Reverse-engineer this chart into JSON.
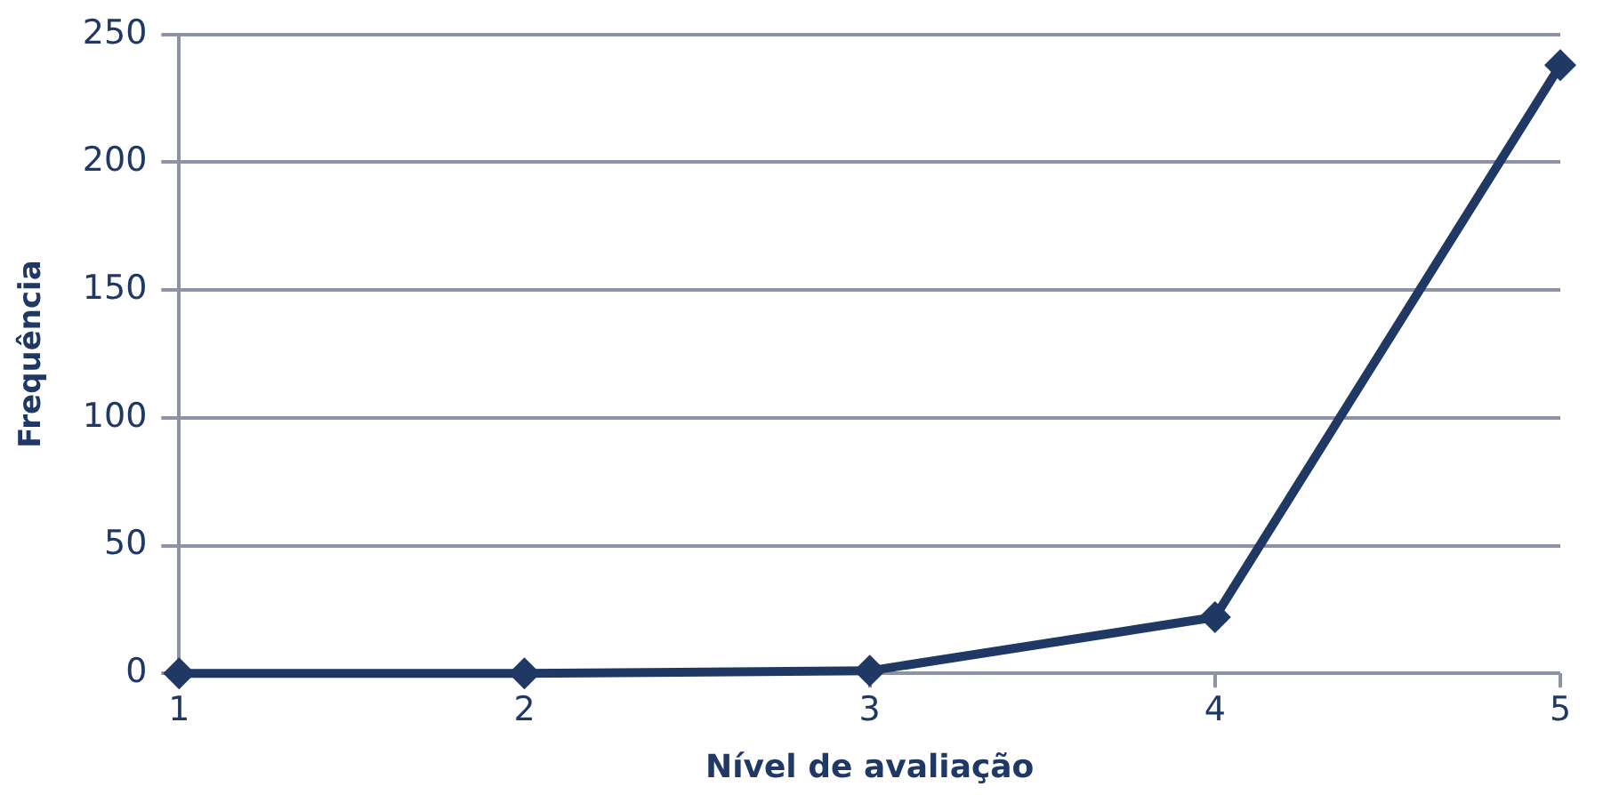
{
  "chart_data": {
    "type": "line",
    "xlabel": "Nível de avaliação",
    "ylabel": "Frequência",
    "categories": [
      "1",
      "2",
      "3",
      "4",
      "5"
    ],
    "series": [
      {
        "color": "#1f3864",
        "values": [
          0,
          0,
          1,
          22,
          238
        ]
      }
    ],
    "ylim": [
      0,
      250
    ],
    "yticks": [
      0,
      50,
      100,
      150,
      200,
      250
    ],
    "grid": "y",
    "legend": false,
    "marker": "diamond",
    "line_style": "solid"
  }
}
